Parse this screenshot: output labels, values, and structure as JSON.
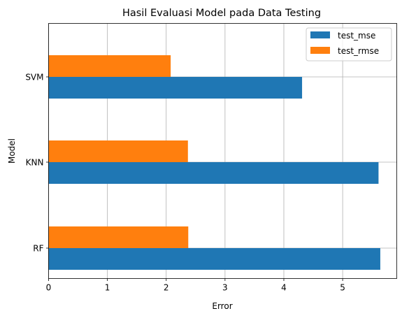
{
  "chart_data": {
    "type": "bar",
    "orientation": "horizontal",
    "title": "Hasil Evaluasi Model pada Data Testing",
    "xlabel": "Error",
    "ylabel": "Model",
    "categories": [
      "RF",
      "KNN",
      "SVM"
    ],
    "series": [
      {
        "name": "test_mse",
        "color": "#1f77b4",
        "values": [
          5.64,
          5.61,
          4.31
        ]
      },
      {
        "name": "test_rmse",
        "color": "#ff7f0e",
        "values": [
          2.375,
          2.369,
          2.076
        ]
      }
    ],
    "xlim": [
      0,
      5.92
    ],
    "xticks": [
      "0",
      "1",
      "2",
      "3",
      "4",
      "5"
    ],
    "grid": true,
    "legend_position": "top-right"
  }
}
